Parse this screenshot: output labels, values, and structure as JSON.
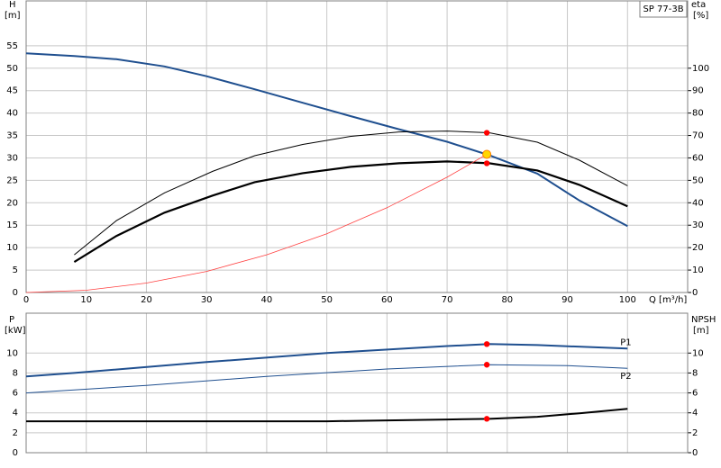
{
  "chart_data": [
    {
      "type": "line",
      "title": "SP 77-3B",
      "ylabel": "H",
      "yunit": "[m]",
      "y2label": "eta",
      "y2unit": "[%]",
      "xlabel": "Q [m³/h]",
      "xlim": [
        0,
        110
      ],
      "xticks": [
        0,
        10,
        20,
        30,
        40,
        50,
        60,
        70,
        80,
        90,
        100
      ],
      "ylim": [
        0,
        65
      ],
      "yticks": [
        0,
        5,
        10,
        15,
        20,
        25,
        30,
        35,
        40,
        45,
        50,
        55
      ],
      "y2lim": [
        0,
        130
      ],
      "y2ticks": [
        0,
        10,
        20,
        30,
        40,
        50,
        60,
        70,
        80,
        90,
        100
      ],
      "grid": true,
      "series": [
        {
          "color": "#1f4f8f",
          "width": 2,
          "axis": "y",
          "x": [
            0,
            8,
            15,
            23,
            30,
            38,
            46,
            54,
            62,
            70,
            77,
            85,
            92,
            100
          ],
          "values": [
            53.3,
            52.7,
            52.0,
            50.4,
            48.2,
            45.3,
            42.3,
            39.3,
            36.4,
            33.6,
            30.6,
            26.5,
            20.5,
            14.8
          ]
        },
        {
          "color": "#000000",
          "width": 1,
          "axis": "y2",
          "x": [
            8,
            15,
            23,
            31,
            38,
            46,
            54,
            62,
            70,
            77,
            85,
            92,
            100
          ],
          "values": [
            16.8,
            32,
            44.4,
            54,
            61,
            66,
            69.6,
            71.6,
            72,
            71.2,
            67,
            59,
            47.6
          ]
        },
        {
          "color": "#000000",
          "width": 2.2,
          "axis": "y2",
          "x": [
            8,
            15,
            23,
            31,
            38,
            46,
            54,
            62,
            70,
            77,
            85,
            92,
            100
          ],
          "values": [
            13.6,
            25.2,
            35.6,
            43.2,
            49.2,
            53.2,
            56,
            57.6,
            58.4,
            57.6,
            54.4,
            48,
            38.4
          ]
        },
        {
          "color": "#ff4040",
          "width": 0.8,
          "axis": "y",
          "x": [
            0,
            10,
            20,
            30,
            40,
            50,
            60,
            70,
            76.6
          ],
          "values": [
            0,
            0.5,
            2.1,
            4.7,
            8.4,
            13.1,
            18.9,
            25.7,
            30.8
          ]
        }
      ],
      "points": [
        {
          "x": 76.6,
          "y": 71.2,
          "axis": "y2",
          "color": "#ff0000"
        },
        {
          "x": 76.6,
          "y": 57.6,
          "axis": "y2",
          "color": "#ff0000"
        },
        {
          "x": 76.6,
          "y": 30.8,
          "axis": "y",
          "color": "#ffd700"
        }
      ]
    },
    {
      "type": "line",
      "ylabel": "P",
      "yunit": "[kW]",
      "y2label": "NPSH",
      "y2unit": "[m]",
      "xlim": [
        0,
        110
      ],
      "xticks": [
        0,
        10,
        20,
        30,
        40,
        50,
        60,
        70,
        80,
        90,
        100
      ],
      "ylim": [
        0,
        14
      ],
      "yticks": [
        0,
        2,
        4,
        6,
        8,
        10
      ],
      "y2lim": [
        0,
        14
      ],
      "y2ticks": [
        0,
        2,
        4,
        6,
        8,
        10
      ],
      "grid": true,
      "series": [
        {
          "name": "P1",
          "color": "#1f4f8f",
          "width": 2,
          "axis": "y",
          "x": [
            0,
            8,
            30,
            50,
            70,
            77,
            85,
            100
          ],
          "values": [
            7.66,
            8.0,
            9.1,
            10.0,
            10.7,
            10.9,
            10.8,
            10.45
          ]
        },
        {
          "name": "P2",
          "color": "#1f4f8f",
          "width": 1,
          "axis": "y",
          "x": [
            0,
            20,
            40,
            60,
            77,
            90,
            100
          ],
          "values": [
            6.0,
            6.76,
            7.66,
            8.4,
            8.83,
            8.74,
            8.47
          ]
        },
        {
          "color": "#000000",
          "width": 2,
          "axis": "y2",
          "x": [
            0,
            50,
            70,
            77,
            85,
            92,
            100
          ],
          "values": [
            3.15,
            3.15,
            3.33,
            3.4,
            3.6,
            3.96,
            4.4
          ]
        }
      ],
      "points": [
        {
          "x": 76.6,
          "y": 10.9,
          "axis": "y",
          "color": "#ff0000"
        },
        {
          "x": 76.6,
          "y": 8.83,
          "axis": "y",
          "color": "#ff0000"
        },
        {
          "x": 76.6,
          "y": 3.4,
          "axis": "y2",
          "color": "#ff0000"
        }
      ]
    }
  ]
}
